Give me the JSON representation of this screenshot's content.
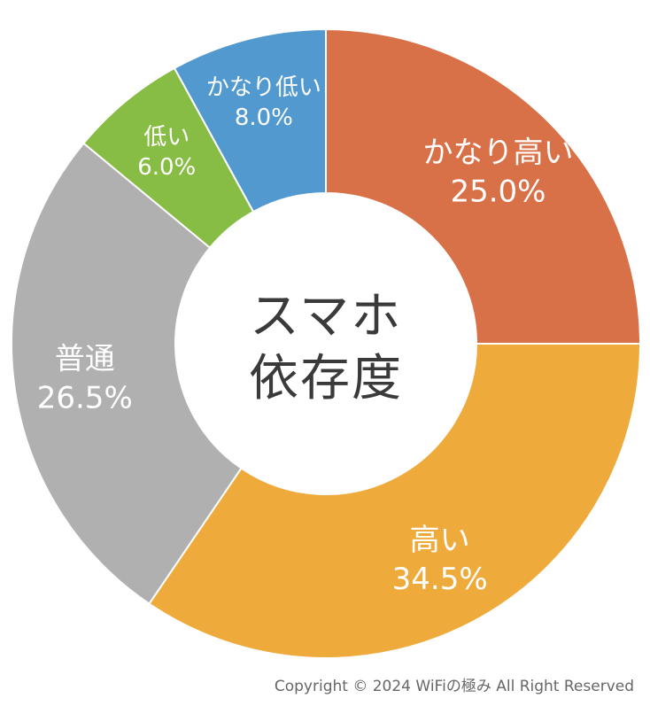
{
  "chart_data": {
    "type": "pie",
    "title": "スマホ\n依存度",
    "slices": [
      {
        "label": "かなり高い",
        "value": 25.0,
        "value_label": "25.0%",
        "color": "#D97148"
      },
      {
        "label": "高い",
        "value": 34.5,
        "value_label": "34.5%",
        "color": "#EFAA3C"
      },
      {
        "label": "普通",
        "value": 26.5,
        "value_label": "26.5%",
        "color": "#B0B0B0"
      },
      {
        "label": "低い",
        "value": 6.0,
        "value_label": "6.0%",
        "color": "#87BC45"
      },
      {
        "label": "かなり低い",
        "value": 8.0,
        "value_label": "8.0%",
        "color": "#5299D0"
      }
    ]
  },
  "center": {
    "line1": "スマホ",
    "line2": "依存度"
  },
  "footer": {
    "copyright": "Copyright © 2024 WiFiの極み All Right Reserved"
  }
}
